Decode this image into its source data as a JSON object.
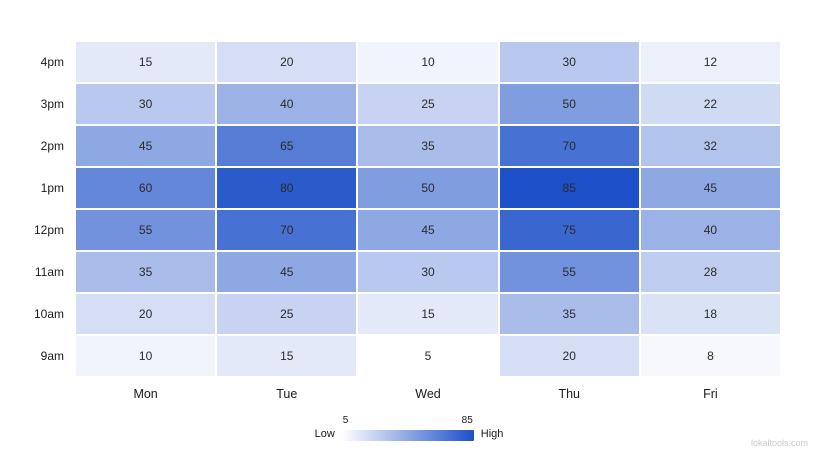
{
  "chart_data": {
    "type": "heatmap",
    "title": "",
    "xlabel": "",
    "ylabel": "",
    "x_categories": [
      "Mon",
      "Tue",
      "Wed",
      "Thu",
      "Fri"
    ],
    "y_categories": [
      "4pm",
      "3pm",
      "2pm",
      "1pm",
      "12pm",
      "11am",
      "10am",
      "9am"
    ],
    "values": [
      [
        15,
        20,
        10,
        30,
        12
      ],
      [
        30,
        40,
        25,
        50,
        22
      ],
      [
        45,
        65,
        35,
        70,
        32
      ],
      [
        60,
        80,
        50,
        85,
        45
      ],
      [
        55,
        70,
        45,
        75,
        40
      ],
      [
        35,
        45,
        30,
        55,
        28
      ],
      [
        20,
        25,
        15,
        35,
        18
      ],
      [
        10,
        15,
        5,
        20,
        8
      ]
    ],
    "scale": {
      "min": 5,
      "max": 85,
      "min_label": "5",
      "max_label": "85",
      "low_label": "Low",
      "high_label": "High"
    },
    "colors": {
      "low": "#ffffff",
      "high": "#1d50c8"
    },
    "legend_position": "bottom",
    "grid": false
  },
  "watermark": "lokaltools.com"
}
